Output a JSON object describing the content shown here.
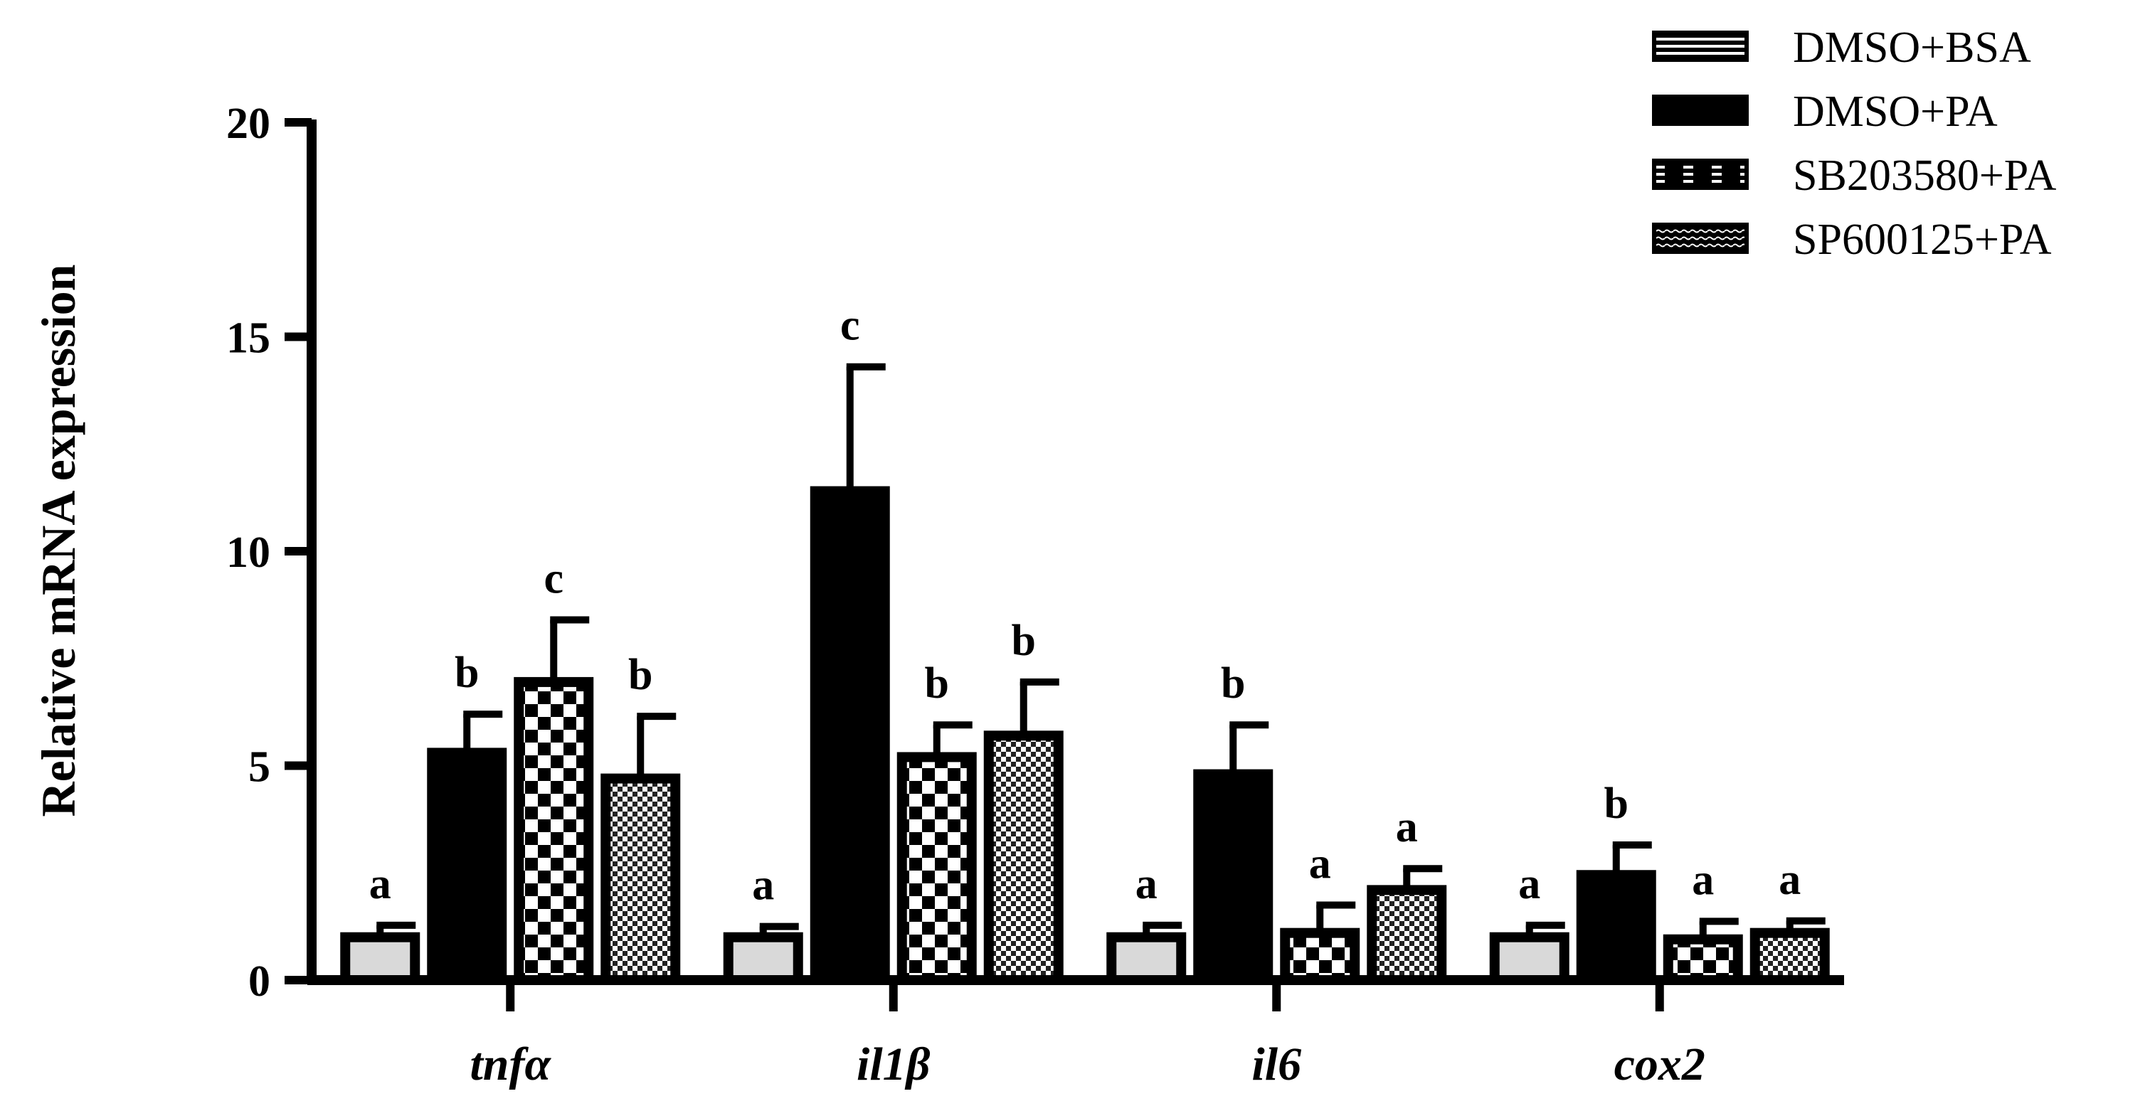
{
  "chart_data": {
    "type": "bar",
    "title": "",
    "xlabel": "",
    "ylabel": "Relative mRNA expression",
    "ylim": [
      0,
      20
    ],
    "yticks": [
      "0",
      "5",
      "10",
      "15",
      "20"
    ],
    "categories": [
      "tnfα",
      "il1β",
      "il6",
      "cox2"
    ],
    "series": [
      {
        "name": "DMSO+BSA",
        "pattern": "light-gray",
        "values": [
          1.0,
          1.0,
          1.0,
          1.0
        ],
        "errors": [
          0.28,
          0.25,
          0.28,
          0.28
        ],
        "labels": [
          "a",
          "a",
          "a",
          "a"
        ]
      },
      {
        "name": "DMSO+PA",
        "pattern": "solid-black",
        "values": [
          5.3,
          11.4,
          4.8,
          2.45
        ],
        "errors": [
          0.9,
          2.9,
          1.15,
          0.7
        ],
        "labels": [
          "b",
          "c",
          "b",
          "b"
        ]
      },
      {
        "name": "SB203580+PA",
        "pattern": "checkerboard",
        "values": [
          6.95,
          5.2,
          1.1,
          0.95
        ],
        "errors": [
          1.45,
          0.75,
          0.65,
          0.42
        ],
        "labels": [
          "c",
          "b",
          "a",
          "a"
        ]
      },
      {
        "name": "SP600125+PA",
        "pattern": "fine-checker",
        "values": [
          4.7,
          5.7,
          2.1,
          1.1
        ],
        "errors": [
          1.45,
          1.25,
          0.5,
          0.28
        ],
        "labels": [
          "b",
          "b",
          "a",
          "a"
        ]
      }
    ],
    "legend_position": "top-right",
    "grid": false
  }
}
